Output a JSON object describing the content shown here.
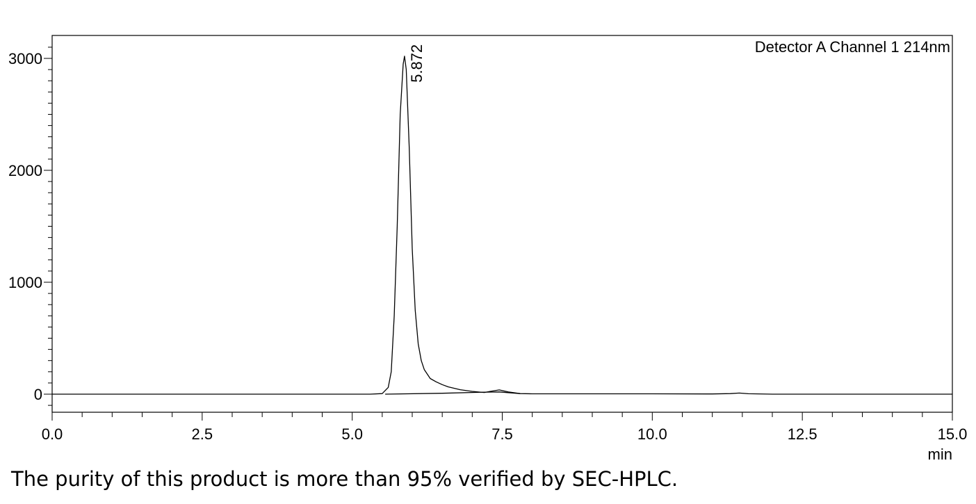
{
  "chart_data": {
    "type": "line",
    "legend": "Detector A Channel 1 214nm",
    "legend_position": "top-right",
    "xlabel": "min",
    "ylabel": "",
    "xlim": [
      0.0,
      15.0
    ],
    "ylim": [
      -170,
      3200
    ],
    "xticks": [
      "0.0",
      "2.5",
      "5.0",
      "7.5",
      "10.0",
      "12.5",
      "15.0"
    ],
    "xtick_values": [
      0.0,
      2.5,
      5.0,
      7.5,
      10.0,
      12.5,
      15.0
    ],
    "yticks": [
      "0",
      "1000",
      "2000",
      "3000"
    ],
    "ytick_values": [
      0,
      1000,
      2000,
      3000
    ],
    "grid": false,
    "peak_annotation": {
      "label": "5.872",
      "x": 5.872,
      "y": 3020
    },
    "series": [
      {
        "x": [
          0.0,
          5.3,
          5.5,
          5.6,
          5.65,
          5.7,
          5.75,
          5.8,
          5.85,
          5.872,
          5.9,
          5.95,
          6.0,
          6.05,
          6.1,
          6.15,
          6.2,
          6.3,
          6.4,
          6.5,
          6.6,
          6.8,
          7.0,
          7.2,
          7.3,
          7.45,
          7.6,
          7.8,
          8.0,
          9.0,
          10.0,
          11.0,
          11.3,
          11.45,
          11.6,
          12.0,
          15.0
        ],
        "y": [
          0,
          0,
          5,
          60,
          200,
          700,
          1500,
          2500,
          2950,
          3020,
          2900,
          2200,
          1300,
          750,
          450,
          300,
          220,
          140,
          110,
          85,
          65,
          40,
          25,
          15,
          25,
          38,
          20,
          5,
          3,
          3,
          3,
          2,
          5,
          10,
          4,
          0,
          0
        ]
      },
      {
        "x": [
          5.55,
          6.5,
          7.2,
          7.45,
          7.8
        ],
        "y": [
          0,
          8,
          18,
          20,
          5
        ]
      }
    ]
  },
  "caption": "The purity of this product is more than 95% verified by SEC-HPLC."
}
